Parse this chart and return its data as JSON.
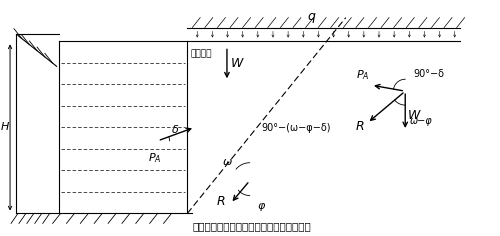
{
  "title": "図－１　補強土壁における外的安定検討図",
  "bg_color": "#ffffff",
  "line_color": "#000000",
  "wl": 0.085,
  "wr": 0.285,
  "wt": 0.88,
  "wb": 0.12,
  "n_layers": 7,
  "slope_label": "仮想背面",
  "q_label": "q",
  "W_label": "W",
  "PA_label": "P_A",
  "R_label": "R",
  "phi_label": "φ",
  "omega_label": "ω",
  "delta_label": "δ",
  "angle_label": "90°−(ω−φ−δ)",
  "angle2_label": "90°−δ",
  "omegaphi_label": "ω−φ"
}
